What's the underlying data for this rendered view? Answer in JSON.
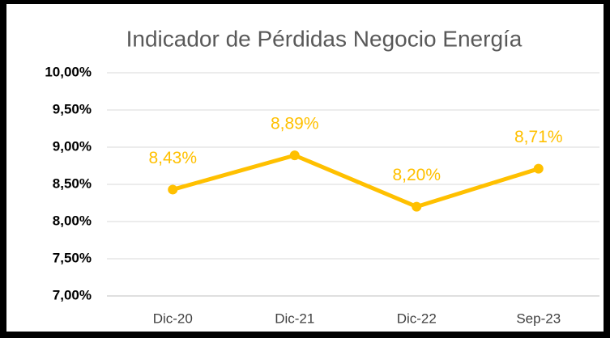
{
  "chart_data": {
    "type": "line",
    "title": "Indicador de Pérdidas Negocio Energía",
    "categories": [
      "Dic-20",
      "Dic-21",
      "Dic-22",
      "Sep-23"
    ],
    "values": [
      8.43,
      8.89,
      8.2,
      8.71
    ],
    "value_labels": [
      "8,43%",
      "8,89%",
      "8,20%",
      "8,71%"
    ],
    "color": "#ffc000",
    "ylim": [
      7,
      10
    ],
    "yticks": [
      {
        "value": 7,
        "label": "7,00%"
      },
      {
        "value": 7.5,
        "label": "7,50%"
      },
      {
        "value": 8,
        "label": "8,00%"
      },
      {
        "value": 8.5,
        "label": "8,50%"
      },
      {
        "value": 9,
        "label": "9,00%"
      },
      {
        "value": 9.5,
        "label": "9,50%"
      },
      {
        "value": 10,
        "label": "10,00%"
      }
    ],
    "grid": true
  }
}
